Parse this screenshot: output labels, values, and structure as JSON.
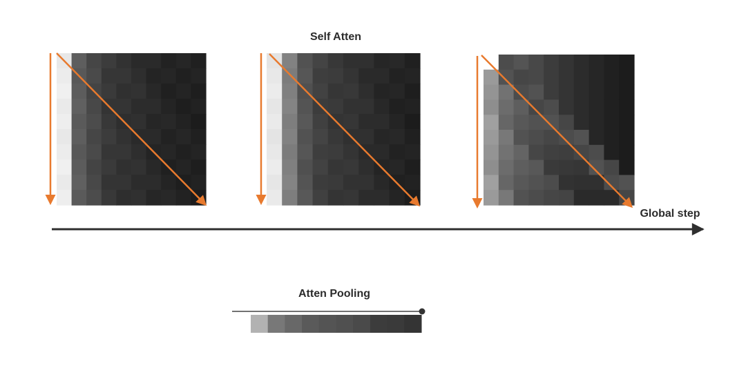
{
  "labels": {
    "self_atten": "Self Atten",
    "atten_pooling": "Atten Pooling",
    "global_step": "Global step"
  },
  "colors": {
    "arrow_orange": "#e87a2e",
    "axis_dark": "#2f2f2f",
    "background": "#ffffff"
  },
  "matrices": [
    {
      "name": "matrix-step-1",
      "columns": [
        236,
        92,
        72,
        56,
        50,
        46,
        40,
        36,
        34,
        32
      ]
    },
    {
      "name": "matrix-step-2",
      "columns": [
        232,
        128,
        84,
        64,
        56,
        52,
        46,
        40,
        36,
        32
      ]
    },
    {
      "name": "matrix-step-3",
      "columns": [
        150,
        110,
        90,
        78,
        66,
        58,
        50,
        44,
        38,
        34
      ]
    }
  ],
  "pooling_bar": {
    "cells": [
      178,
      120,
      104,
      90,
      84,
      80,
      74,
      60,
      58,
      52
    ]
  }
}
